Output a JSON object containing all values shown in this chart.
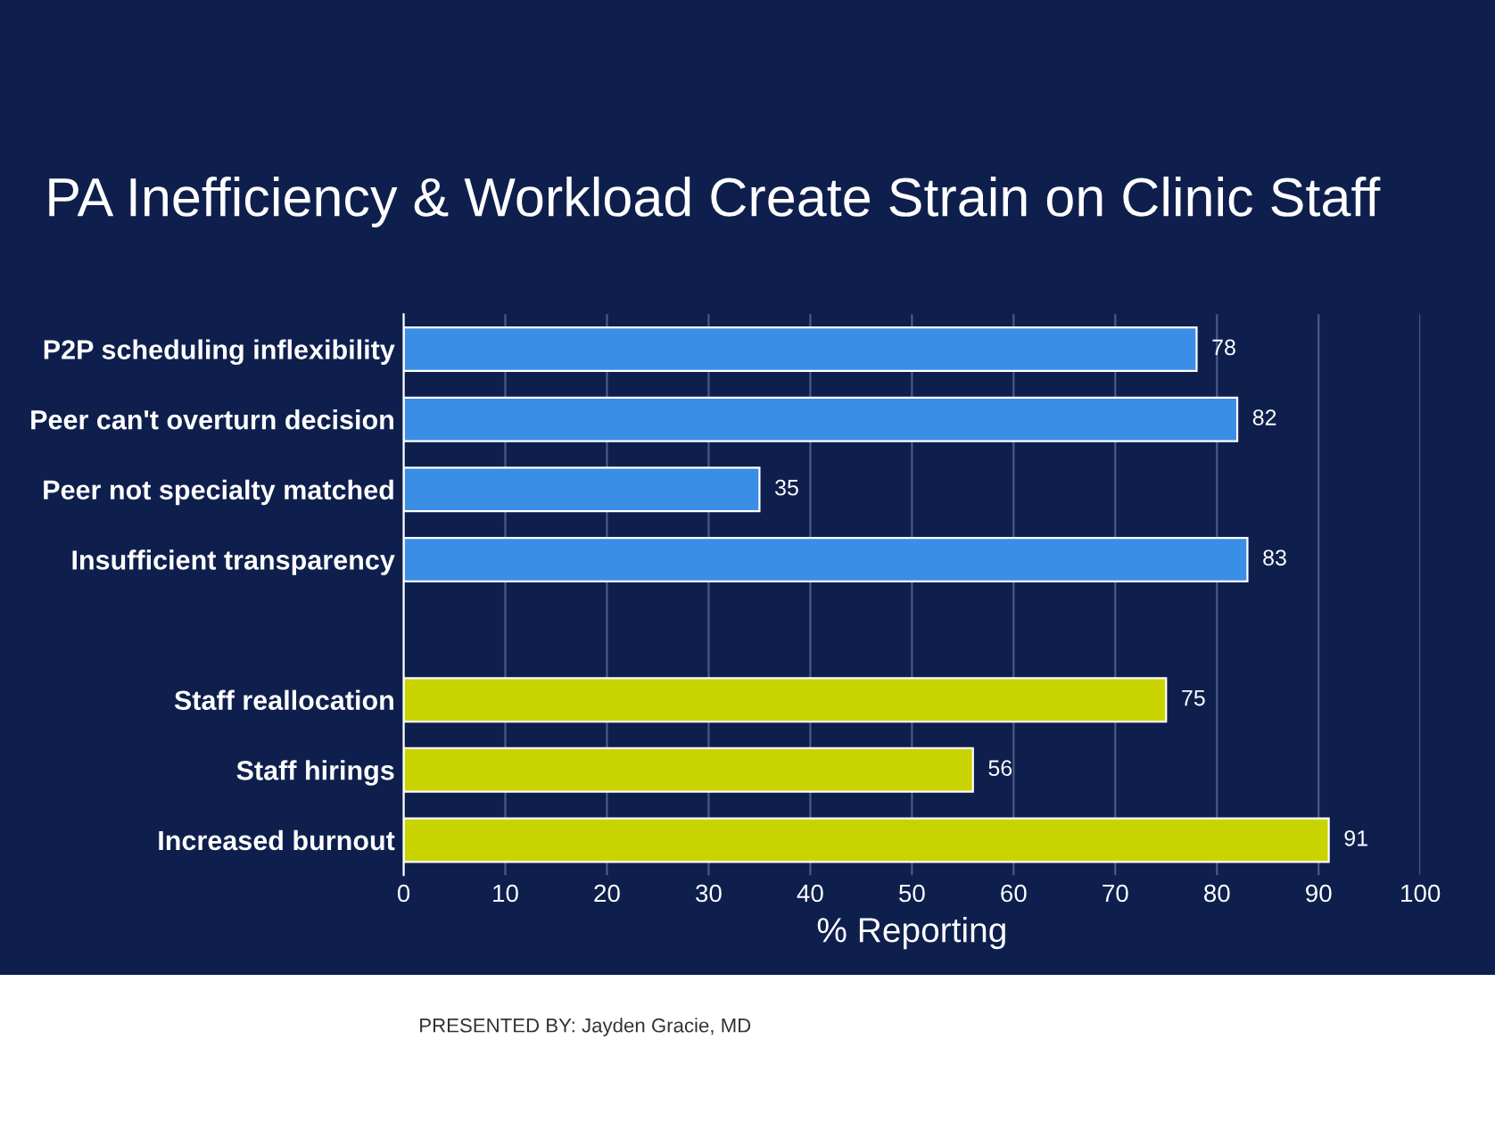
{
  "chart_data": {
    "type": "bar",
    "orientation": "horizontal",
    "title": "PA Inefficiency & Workload Create Strain on Clinic Staff",
    "xlabel": "% Reporting",
    "categories": [
      "P2P scheduling inflexibility",
      "Peer can't overturn decision",
      "Peer not specialty matched",
      "Insufficient transparency",
      null,
      "Staff reallocation",
      "Staff hirings",
      "Increased burnout"
    ],
    "values": [
      78,
      82,
      35,
      83,
      null,
      75,
      56,
      91
    ],
    "colors": [
      "#3a8ee6",
      "#3a8ee6",
      "#3a8ee6",
      "#3a8ee6",
      null,
      "#c9d300",
      "#c9d300",
      "#c9d300"
    ],
    "xlim": [
      0,
      100
    ],
    "xticks": [
      0,
      10,
      20,
      30,
      40,
      50,
      60,
      70,
      80,
      90,
      100
    ],
    "grid": "x",
    "data_labels": true,
    "annotations": [
      "PRESENTED BY: Jayden Gracie, MD"
    ]
  }
}
